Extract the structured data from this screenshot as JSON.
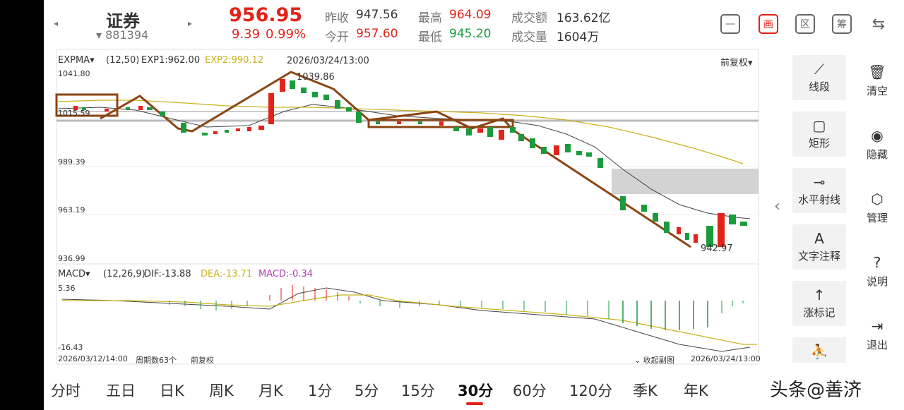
{
  "header": {
    "name": "证券",
    "code": "881394",
    "price": "956.95",
    "change": "9.39",
    "change_pct": "0.99%",
    "stats": [
      {
        "label": "昨收",
        "value": "947.56"
      },
      {
        "label": "今开",
        "value": "957.60"
      },
      {
        "label": "最高",
        "value": "964.09"
      },
      {
        "label": "最低",
        "value": "945.20"
      },
      {
        "label": "成交额",
        "value": "163.62亿"
      },
      {
        "label": "成交量",
        "value": "1604万"
      }
    ],
    "buttons": [
      {
        "icon": "minus-box-icon",
        "glyph": "—"
      },
      {
        "icon": "chart-draw-icon",
        "glyph": "画"
      },
      {
        "icon": "interval-icon",
        "glyph": "区"
      },
      {
        "icon": "chip-icon",
        "glyph": "筹"
      },
      {
        "icon": "rotate-screen-icon",
        "glyph": "⇆"
      }
    ]
  },
  "main_chart": {
    "indicator": "EXPMA",
    "params": "(12,50)",
    "exp1": "EXP1:962.00",
    "exp2": "EXP2:990.12",
    "cursor_time": "2026/03/24/13:00",
    "adjust": "前复权",
    "y_ticks": [
      "1041.80",
      "1015.59",
      "989.39",
      "963.19",
      "936.99"
    ],
    "high_label": "1039.86",
    "low_label": "942.97"
  },
  "macd": {
    "indicator": "MACD",
    "params": "(12,26,9)",
    "dif": "DIF:-13.88",
    "dea": "DEA:-13.71",
    "macd": "MACD:-0.34",
    "y_top": "5.36",
    "y_bottom": "-16.43"
  },
  "footer": {
    "start_time": "2026/03/12/14:00",
    "periods_count": "周期数63个",
    "adjust": "前复权",
    "collapse": "收起副图",
    "end_time": "2026/03/24/13:00"
  },
  "tools": [
    {
      "icon": "line-segment-icon",
      "glyph": "⟋",
      "label": "线段"
    },
    {
      "icon": "rectangle-icon",
      "glyph": "▢",
      "label": "矩形"
    },
    {
      "icon": "horizontal-ray-icon",
      "glyph": "⊸",
      "label": "水平射线"
    },
    {
      "icon": "text-annotation-icon",
      "glyph": "A",
      "label": "文字注释"
    },
    {
      "icon": "up-arrow-icon",
      "glyph": "↑",
      "label": "涨标记"
    },
    {
      "icon": "more-tool-icon",
      "glyph": "⛹",
      "label": ""
    }
  ],
  "side_actions": [
    {
      "icon": "trash-icon",
      "glyph": "🗑",
      "label": "清空"
    },
    {
      "icon": "eye-icon",
      "glyph": "◉",
      "label": "隐藏"
    },
    {
      "icon": "manage-icon",
      "glyph": "⬡",
      "label": "管理"
    },
    {
      "icon": "help-icon",
      "glyph": "?",
      "label": "说明"
    },
    {
      "icon": "exit-icon",
      "glyph": "⇥",
      "label": "退出"
    }
  ],
  "periods": [
    "分时",
    "五日",
    "日K",
    "周K",
    "月K",
    "1分",
    "5分",
    "15分",
    "30分",
    "60分",
    "120分",
    "季K",
    "年K"
  ],
  "active_period": "30分",
  "watermark": "头条@善济"
}
